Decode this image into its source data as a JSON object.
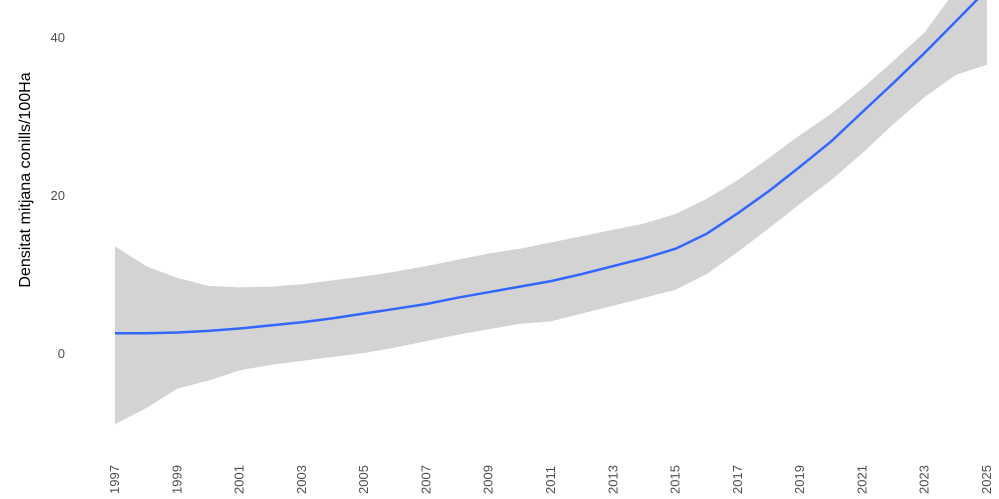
{
  "chart_data": {
    "type": "line",
    "title": "",
    "xlabel": "",
    "ylabel": "Densitat mitjana conills/100Ha",
    "xlim": [
      1997,
      2025
    ],
    "ylim": [
      -10,
      46
    ],
    "grid": false,
    "legend": "none",
    "x_ticks": [
      "1997",
      "1999",
      "2001",
      "2003",
      "2005",
      "2007",
      "2009",
      "2011",
      "2013",
      "2015",
      "2017",
      "2019",
      "2021",
      "2023",
      "2025"
    ],
    "y_ticks": [
      "0",
      "20",
      "40"
    ],
    "colors": {
      "line": "#3366ff",
      "band": "#d3d3d3",
      "tick_text": "#4d4d4d"
    },
    "series": [
      {
        "x": [
          1997,
          1998,
          1999,
          2000,
          2001,
          2002,
          2003,
          2004,
          2005,
          2006,
          2007,
          2008,
          2009,
          2010,
          2011,
          2012,
          2013,
          2014,
          2015,
          2016,
          2017,
          2018,
          2019,
          2020,
          2021,
          2022,
          2023,
          2024,
          2025
        ],
        "y": [
          2.5,
          2.5,
          2.6,
          2.8,
          3.1,
          3.5,
          3.9,
          4.4,
          5.0,
          5.6,
          6.2,
          7.0,
          7.7,
          8.4,
          9.1,
          10.0,
          11.0,
          12.0,
          13.2,
          15.1,
          17.7,
          20.5,
          23.6,
          26.8,
          30.5,
          34.2,
          38.0,
          42.0,
          46.0
        ],
        "lower": [
          -9.0,
          -7.0,
          -4.5,
          -3.5,
          -2.2,
          -1.5,
          -1.0,
          -0.5,
          0.0,
          0.7,
          1.5,
          2.3,
          3.0,
          3.7,
          4.0,
          5.0,
          6.0,
          7.0,
          8.0,
          10.0,
          12.8,
          15.8,
          18.9,
          21.9,
          25.3,
          29.0,
          32.4,
          35.2,
          36.5
        ],
        "upper": [
          13.5,
          11.0,
          9.5,
          8.5,
          8.3,
          8.4,
          8.7,
          9.2,
          9.7,
          10.3,
          11.0,
          11.8,
          12.6,
          13.2,
          14.0,
          14.8,
          15.6,
          16.4,
          17.6,
          19.5,
          21.9,
          24.7,
          27.6,
          30.3,
          33.5,
          37.0,
          40.6,
          46.0,
          46.0
        ]
      }
    ]
  }
}
